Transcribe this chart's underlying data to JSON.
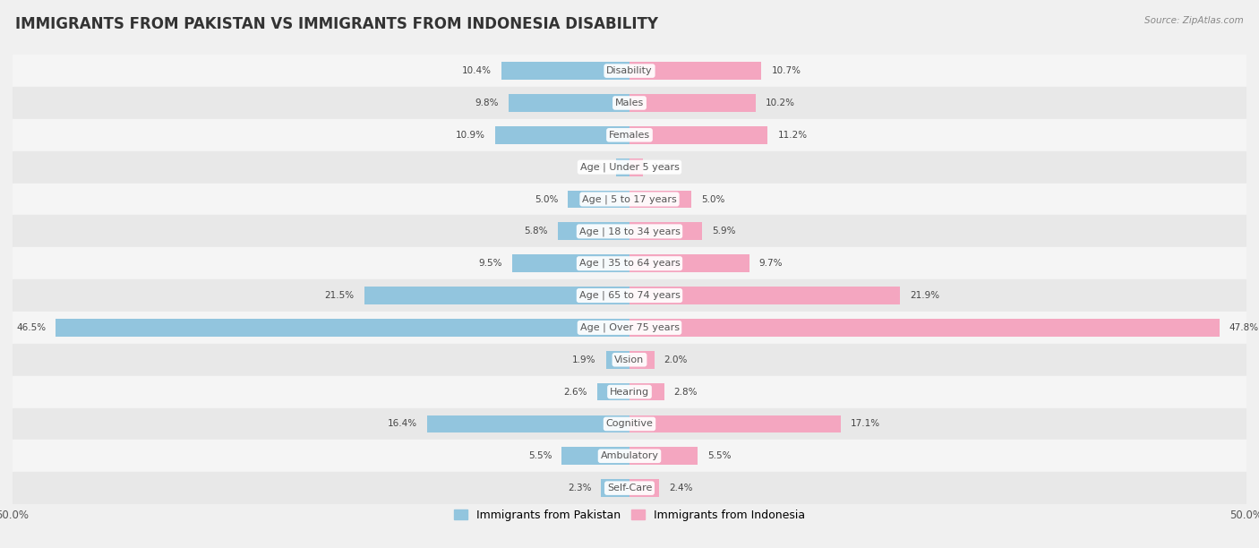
{
  "title": "IMMIGRANTS FROM PAKISTAN VS IMMIGRANTS FROM INDONESIA DISABILITY",
  "source": "Source: ZipAtlas.com",
  "categories": [
    "Disability",
    "Males",
    "Females",
    "Age | Under 5 years",
    "Age | 5 to 17 years",
    "Age | 18 to 34 years",
    "Age | 35 to 64 years",
    "Age | 65 to 74 years",
    "Age | Over 75 years",
    "Vision",
    "Hearing",
    "Cognitive",
    "Ambulatory",
    "Self-Care"
  ],
  "pakistan_values": [
    10.4,
    9.8,
    10.9,
    1.1,
    5.0,
    5.8,
    9.5,
    21.5,
    46.5,
    1.9,
    2.6,
    16.4,
    5.5,
    2.3
  ],
  "indonesia_values": [
    10.7,
    10.2,
    11.2,
    1.1,
    5.0,
    5.9,
    9.7,
    21.9,
    47.8,
    2.0,
    2.8,
    17.1,
    5.5,
    2.4
  ],
  "pakistan_color": "#92c5de",
  "indonesia_color": "#f4a6c0",
  "pakistan_label": "Immigrants from Pakistan",
  "indonesia_label": "Immigrants from Indonesia",
  "axis_max": 50.0,
  "bg_color": "#f0f0f0",
  "row_bg_light": "#f5f5f5",
  "row_bg_dark": "#e8e8e8",
  "title_fontsize": 12,
  "label_fontsize": 8.0,
  "value_fontsize": 7.5,
  "legend_fontsize": 9
}
